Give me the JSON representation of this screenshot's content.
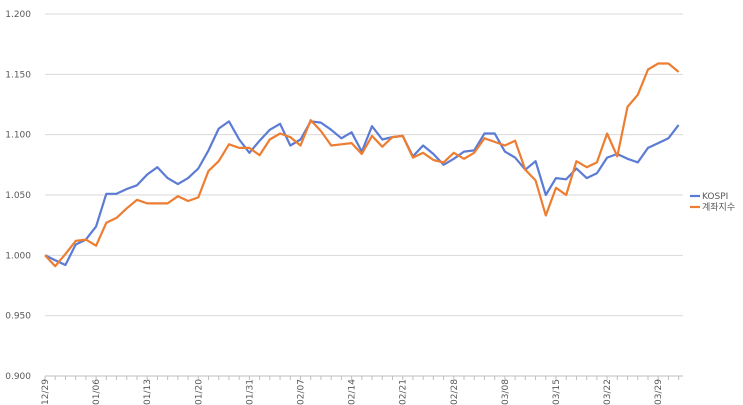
{
  "chart_data": {
    "type": "line",
    "categories": [
      "22/12/29",
      null,
      null,
      null,
      null,
      "23/01/06",
      null,
      null,
      null,
      null,
      "23/01/13",
      null,
      null,
      null,
      null,
      "23/01/20",
      null,
      null,
      null,
      null,
      "23/01/31",
      null,
      null,
      null,
      null,
      "23/02/07",
      null,
      null,
      null,
      null,
      "23/02/14",
      null,
      null,
      null,
      null,
      "23/02/21",
      null,
      null,
      null,
      null,
      "23/02/28",
      null,
      null,
      null,
      null,
      "23/03/08",
      null,
      null,
      null,
      null,
      "23/03/15",
      null,
      null,
      null,
      null,
      "23/03/22",
      null,
      null,
      null,
      null,
      "23/03/29",
      null,
      null
    ],
    "series": [
      {
        "name": "KOSPI",
        "color": "#5b7bd5",
        "values": [
          1.0,
          0.996,
          0.992,
          1.009,
          1.013,
          1.024,
          1.051,
          1.051,
          1.055,
          1.058,
          1.067,
          1.073,
          1.064,
          1.059,
          1.064,
          1.072,
          1.087,
          1.105,
          1.111,
          1.096,
          1.085,
          1.095,
          1.104,
          1.109,
          1.091,
          1.096,
          1.111,
          1.11,
          1.104,
          1.097,
          1.102,
          1.086,
          1.107,
          1.096,
          1.098,
          1.099,
          1.082,
          1.091,
          1.084,
          1.075,
          1.08,
          1.086,
          1.087,
          1.101,
          1.101,
          1.086,
          1.081,
          1.071,
          1.078,
          1.05,
          1.064,
          1.063,
          1.072,
          1.064,
          1.068,
          1.081,
          1.084,
          1.08,
          1.077,
          1.089,
          1.093,
          1.097,
          1.108
        ]
      },
      {
        "name": "계좌지수",
        "color": "#ed7d31",
        "values": [
          1.0,
          0.991,
          1.001,
          1.012,
          1.013,
          1.008,
          1.027,
          1.031,
          1.039,
          1.046,
          1.043,
          1.043,
          1.043,
          1.049,
          1.045,
          1.048,
          1.07,
          1.078,
          1.092,
          1.089,
          1.089,
          1.083,
          1.096,
          1.101,
          1.098,
          1.091,
          1.112,
          1.103,
          1.091,
          1.092,
          1.093,
          1.084,
          1.099,
          1.09,
          1.098,
          1.099,
          1.081,
          1.085,
          1.079,
          1.077,
          1.085,
          1.08,
          1.085,
          1.097,
          1.094,
          1.091,
          1.095,
          1.071,
          1.062,
          1.033,
          1.056,
          1.05,
          1.078,
          1.073,
          1.077,
          1.101,
          1.082,
          1.123,
          1.133,
          1.154,
          1.159,
          1.159,
          1.152
        ]
      }
    ],
    "ylim": [
      0.9,
      1.2
    ],
    "yticks": [
      {
        "value": 0.9,
        "label": "0.900"
      },
      {
        "value": 0.95,
        "label": "0.950"
      },
      {
        "value": 1.0,
        "label": "1.000"
      },
      {
        "value": 1.05,
        "label": "1.050"
      },
      {
        "value": 1.1,
        "label": "1.100"
      },
      {
        "value": 1.15,
        "label": "1.150"
      },
      {
        "value": 1.2,
        "label": "1.200"
      }
    ],
    "grid": true,
    "legend": "right"
  }
}
